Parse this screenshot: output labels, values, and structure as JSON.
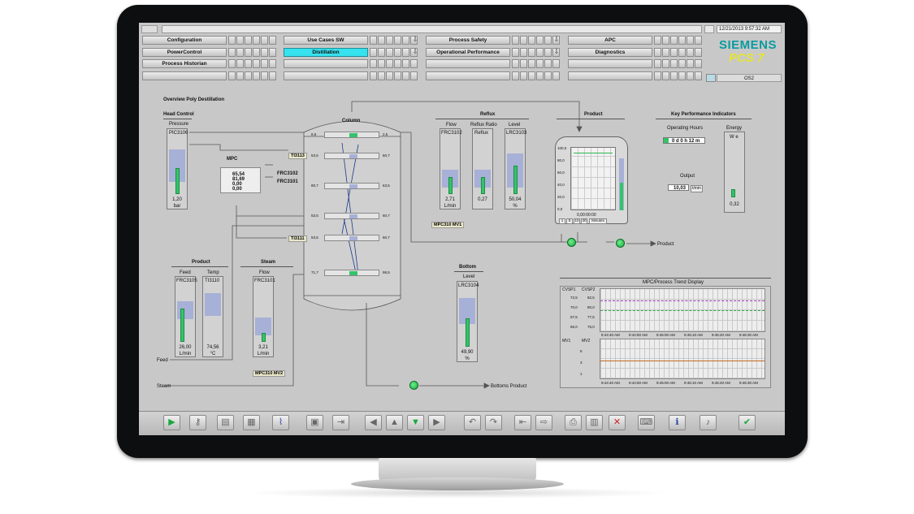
{
  "header": {
    "datetime": "12/21/2013 9:57:32 AM",
    "brand": "SIEMENS",
    "product": "PCS 7",
    "station": "OS2",
    "nav": [
      {
        "label": "Configuration"
      },
      {
        "label": "Use Cases SW"
      },
      {
        "label": "Process Safety"
      },
      {
        "label": "APC"
      },
      {
        "label": "PowerControl"
      },
      {
        "label": "Distillation"
      },
      {
        "label": "Operational Performance"
      },
      {
        "label": "Diagnostics"
      },
      {
        "label": "Process Historian"
      }
    ]
  },
  "main": {
    "title": "Overview Poly Destillation",
    "head_control": {
      "title": "Head Control",
      "sub": "Pressure",
      "tag": "PIC3106",
      "value": "1,20",
      "unit": "bar",
      "level": 0.45
    },
    "mpc": {
      "title": "MPC",
      "values": [
        "65,54",
        "81,69",
        "0,00",
        "0,00"
      ],
      "outputs": [
        "FRC3102",
        "FRC3101"
      ]
    },
    "tags": [
      "TI3113",
      "TI3111"
    ],
    "column": {
      "title": "Column",
      "trays": [
        {
          "left": "8,6",
          "right": "2,5"
        },
        {
          "left": "53,5",
          "right": "60,7"
        },
        {
          "left": "80,7",
          "right": "63,5"
        },
        {
          "left": "53,5",
          "right": "60,7"
        },
        {
          "left": "53,5",
          "right": "60,7"
        },
        {
          "left": "71,7",
          "right": "98,5"
        }
      ]
    },
    "reflux": {
      "title": "Reflux",
      "flow": {
        "label": "Flow",
        "tag": "FRC3102",
        "value": "2,71",
        "unit": "L/min",
        "level": 0.3
      },
      "ratio": {
        "label": "Reflux Ratio",
        "tag": "Reflux",
        "value": "0,27",
        "unit": "",
        "level": 0.3
      },
      "level": {
        "label": "Level",
        "tag": "LRC3103",
        "value": "50,04",
        "unit": "%",
        "level": 0.5
      },
      "mv_tag": "MPC310 MV1"
    },
    "product_tank": {
      "title": "Product",
      "scale": [
        "100,0",
        "80,0",
        "60,0",
        "40,0",
        "20,0",
        "0,0"
      ],
      "time_label": "Minutes",
      "time_buttons": [
        "1",
        "5",
        "10",
        "30"
      ],
      "footer": "0,00:00:00",
      "out_label": "Product"
    },
    "kpi": {
      "title": "Key Performance Indicators",
      "op_hours_label": "Operating Hours",
      "op_hours_value": "0 d   0 h  12 m",
      "energy_label": "Energy",
      "energy_unit": "W e",
      "energy_value": "0,32",
      "output_label": "Output",
      "output_value": "10,03",
      "output_unit": "t/min"
    },
    "product_feed": {
      "title": "Product",
      "feed": {
        "label": "Feed",
        "tag": "FRC3105",
        "value": "26,00",
        "unit": "L/min",
        "level": 0.58
      },
      "temp": {
        "label": "Temp",
        "tag": "TI3110",
        "value": "74,56",
        "unit": "°C",
        "level": 0.55
      },
      "in_label": "Feed"
    },
    "steam": {
      "title": "Steam",
      "flow": {
        "label": "Flow",
        "tag": "FRC3101",
        "value": "3,21",
        "unit": "L/min",
        "level": 0.15
      },
      "mv_tag": "MPC310 MV2",
      "in_label": "Steam"
    },
    "bottom": {
      "title": "Bottom",
      "level": {
        "label": "Level",
        "tag": "LRC3104",
        "value": "49,90",
        "unit": "%",
        "level": 0.5
      },
      "out_label": "Bottoms Product"
    },
    "trend": {
      "title": "MPC/Process Trend Display",
      "cv_labels": [
        "CVSP1",
        "CVSP2"
      ],
      "mv_labels": [
        "MV1",
        "MV2"
      ],
      "times": [
        "9:44:40 AM",
        "9:44:50 AM",
        "9:45:00 AM",
        "9:45:10 AM",
        "9:45:20 AM",
        "9:45:30 AM"
      ],
      "y_top": [
        "72,5",
        "70,0",
        "67,5",
        "65,0"
      ],
      "y_top2": [
        "82,5",
        "80,0",
        "77,5",
        "75,0"
      ],
      "y_bottom": [
        "5",
        "3",
        "1"
      ]
    }
  },
  "toolbar": {
    "icons": [
      "start-icon",
      "key-icon",
      "folder-icon",
      "report-icon",
      "trend-icon",
      "screen-icon",
      "export-icon",
      "arrow-left-icon",
      "arrow-up-icon",
      "arrow-down-icon",
      "arrow-right-icon",
      "undo-icon",
      "redo-icon",
      "import-icon",
      "forward-icon",
      "print-icon",
      "save-icon",
      "delete-icon",
      "keyboard-icon",
      "info-icon",
      "sound-icon",
      "ack-icon"
    ]
  }
}
